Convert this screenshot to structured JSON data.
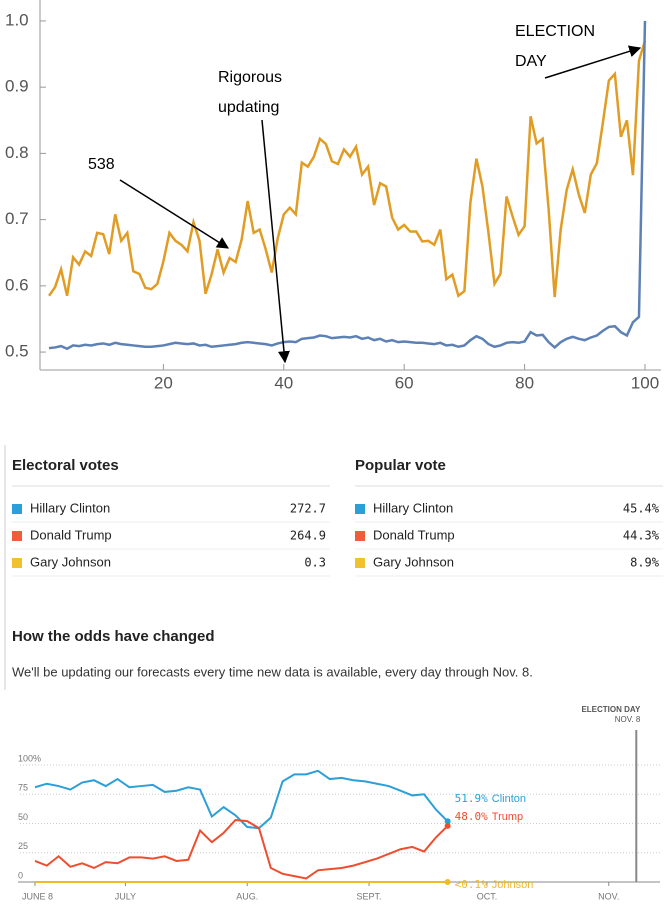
{
  "chart_data": [
    {
      "type": "line",
      "x": [
        1,
        2,
        3,
        4,
        5,
        6,
        7,
        8,
        9,
        10,
        11,
        12,
        13,
        14,
        15,
        16,
        17,
        18,
        19,
        20,
        21,
        22,
        23,
        24,
        25,
        26,
        27,
        28,
        29,
        30,
        31,
        32,
        33,
        34,
        35,
        36,
        37,
        38,
        39,
        40,
        41,
        42,
        43,
        44,
        45,
        46,
        47,
        48,
        49,
        50,
        51,
        52,
        53,
        54,
        55,
        56,
        57,
        58,
        59,
        60,
        61,
        62,
        63,
        64,
        65,
        66,
        67,
        68,
        69,
        70,
        71,
        72,
        73,
        74,
        75,
        76,
        77,
        78,
        79,
        80,
        81,
        82,
        83,
        84,
        85,
        86,
        87,
        88,
        89,
        90,
        91,
        92,
        93,
        94,
        95,
        96,
        97,
        98,
        99,
        100
      ],
      "series": [
        {
          "color": "#e19c24",
          "values": [
            0.585,
            0.598,
            0.625,
            0.585,
            0.643,
            0.632,
            0.652,
            0.645,
            0.68,
            0.678,
            0.648,
            0.708,
            0.668,
            0.68,
            0.622,
            0.618,
            0.597,
            0.595,
            0.603,
            0.637,
            0.68,
            0.668,
            0.662,
            0.652,
            0.696,
            0.668,
            0.588,
            0.617,
            0.655,
            0.62,
            0.642,
            0.636,
            0.67,
            0.728,
            0.68,
            0.685,
            0.655,
            0.62,
            0.672,
            0.708,
            0.718,
            0.708,
            0.786,
            0.78,
            0.795,
            0.822,
            0.814,
            0.788,
            0.784,
            0.806,
            0.795,
            0.81,
            0.768,
            0.78,
            0.722,
            0.755,
            0.75,
            0.703,
            0.685,
            0.692,
            0.682,
            0.682,
            0.667,
            0.668,
            0.662,
            0.685,
            0.61,
            0.617,
            0.585,
            0.592,
            0.726,
            0.792,
            0.75,
            0.68,
            0.603,
            0.618,
            0.735,
            0.705,
            0.677,
            0.69,
            0.856,
            0.815,
            0.822,
            0.715,
            0.583,
            0.685,
            0.745,
            0.776,
            0.738,
            0.71,
            0.768,
            0.785,
            0.846,
            0.91,
            0.92,
            0.825,
            0.85,
            0.767,
            0.94,
            0.97
          ]
        },
        {
          "color": "#5e81b5",
          "values": [
            0.506,
            0.507,
            0.509,
            0.505,
            0.51,
            0.509,
            0.511,
            0.51,
            0.512,
            0.513,
            0.511,
            0.514,
            0.512,
            0.511,
            0.51,
            0.509,
            0.508,
            0.508,
            0.509,
            0.51,
            0.512,
            0.514,
            0.513,
            0.512,
            0.513,
            0.51,
            0.511,
            0.508,
            0.509,
            0.51,
            0.511,
            0.512,
            0.514,
            0.515,
            0.514,
            0.513,
            0.512,
            0.51,
            0.513,
            0.515,
            0.516,
            0.515,
            0.52,
            0.521,
            0.522,
            0.525,
            0.524,
            0.521,
            0.522,
            0.523,
            0.522,
            0.524,
            0.52,
            0.522,
            0.518,
            0.52,
            0.516,
            0.518,
            0.515,
            0.516,
            0.515,
            0.514,
            0.514,
            0.513,
            0.512,
            0.514,
            0.51,
            0.511,
            0.508,
            0.51,
            0.518,
            0.524,
            0.52,
            0.512,
            0.508,
            0.51,
            0.514,
            0.515,
            0.514,
            0.516,
            0.53,
            0.525,
            0.526,
            0.515,
            0.507,
            0.515,
            0.52,
            0.523,
            0.52,
            0.518,
            0.522,
            0.525,
            0.532,
            0.538,
            0.539,
            0.53,
            0.525,
            0.545,
            0.553,
            1.0
          ]
        }
      ],
      "xlim": [
        0,
        101
      ],
      "ylim": [
        0.485,
        1.015
      ],
      "xticks": [
        20,
        40,
        60,
        80,
        100
      ],
      "yticks": [
        0.5,
        0.6,
        0.7,
        0.8,
        0.9,
        {
          "value": 1,
          "label": "1.0"
        }
      ],
      "annotations": [
        [
          "538"
        ],
        [
          "Rigorous",
          "updating"
        ],
        [
          "ELECTION",
          "DAY"
        ]
      ]
    },
    {
      "type": "line",
      "title": "How the odds have changed",
      "subtitle": "We'll be updating our forecasts every time new data is available, every day through Nov. 8.",
      "x": [
        0,
        3,
        6,
        9,
        12,
        15,
        18,
        21,
        24,
        27,
        30,
        33,
        36,
        39,
        42,
        45,
        48,
        51,
        54,
        57,
        60,
        63,
        66,
        69,
        72,
        75,
        78,
        81,
        84,
        87,
        90,
        93,
        96,
        99,
        102,
        105
      ],
      "series": [
        {
          "name": "Clinton",
          "color": "#2c9fd8",
          "end_label": "51.9%",
          "values": [
            81,
            84,
            82,
            79,
            85,
            87,
            82,
            88,
            81,
            82,
            83,
            77,
            78,
            81,
            79,
            56,
            64,
            57,
            47,
            46,
            55,
            86,
            92,
            92,
            95,
            88,
            89,
            87,
            86,
            84,
            82,
            78,
            74,
            75,
            62,
            51.9
          ]
        },
        {
          "name": "Trump",
          "color": "#ef4d2f",
          "end_label": "48.0%",
          "values": [
            18,
            14,
            22,
            13,
            16,
            12,
            17,
            16,
            21,
            21,
            20,
            22,
            18,
            19,
            44,
            34,
            42,
            53,
            52,
            46,
            12,
            7,
            5,
            3,
            10,
            11,
            12,
            14,
            17,
            20,
            24,
            28,
            30,
            26,
            38,
            48.0
          ]
        },
        {
          "name": "Johnson",
          "color": "#efb92a",
          "end_label": "<0.1%",
          "values": [
            0.05,
            0.05,
            0.05,
            0.05,
            0.05,
            0.05,
            0.05,
            0.05,
            0.05,
            0.05,
            0.05,
            0.05,
            0.05,
            0.05,
            0.05,
            0.05,
            0.05,
            0.05,
            0.05,
            0.05,
            0.05,
            0.05,
            0.05,
            0.05,
            0.05,
            0.05,
            0.05,
            0.05,
            0.05,
            0.05,
            0.05,
            0.05,
            0.05,
            0.05,
            0.05,
            0.05
          ]
        }
      ],
      "xlim": [
        0,
        160
      ],
      "ylim": [
        0,
        100
      ],
      "xticks": [
        {
          "value": 0,
          "label": "JUNE 8"
        },
        {
          "value": 23,
          "label": "JULY"
        },
        {
          "value": 54,
          "label": "AUG."
        },
        {
          "value": 85,
          "label": "SEPT."
        },
        {
          "value": 115,
          "label": "OCT."
        },
        {
          "value": 146,
          "label": "NOV."
        }
      ],
      "yticks": [
        0,
        25,
        50,
        75,
        {
          "value": 100,
          "label": "100%"
        }
      ],
      "marker": {
        "x": 153,
        "label": [
          "ELECTION DAY",
          "NOV. 8"
        ]
      }
    }
  ],
  "tables": [
    {
      "title": "Electoral votes",
      "rows": [
        [
          "Hillary Clinton",
          "272.7"
        ],
        [
          "Donald Trump",
          "264.9"
        ],
        [
          "Gary Johnson",
          "0.3"
        ]
      ]
    },
    {
      "title": "Popular vote",
      "rows": [
        [
          "Hillary Clinton",
          "45.4%"
        ],
        [
          "Donald Trump",
          "44.3%"
        ],
        [
          "Gary Johnson",
          "8.9%"
        ]
      ]
    }
  ],
  "row_colors": [
    "#2a9fd8",
    "#f05b3a",
    "#f2c12e"
  ]
}
